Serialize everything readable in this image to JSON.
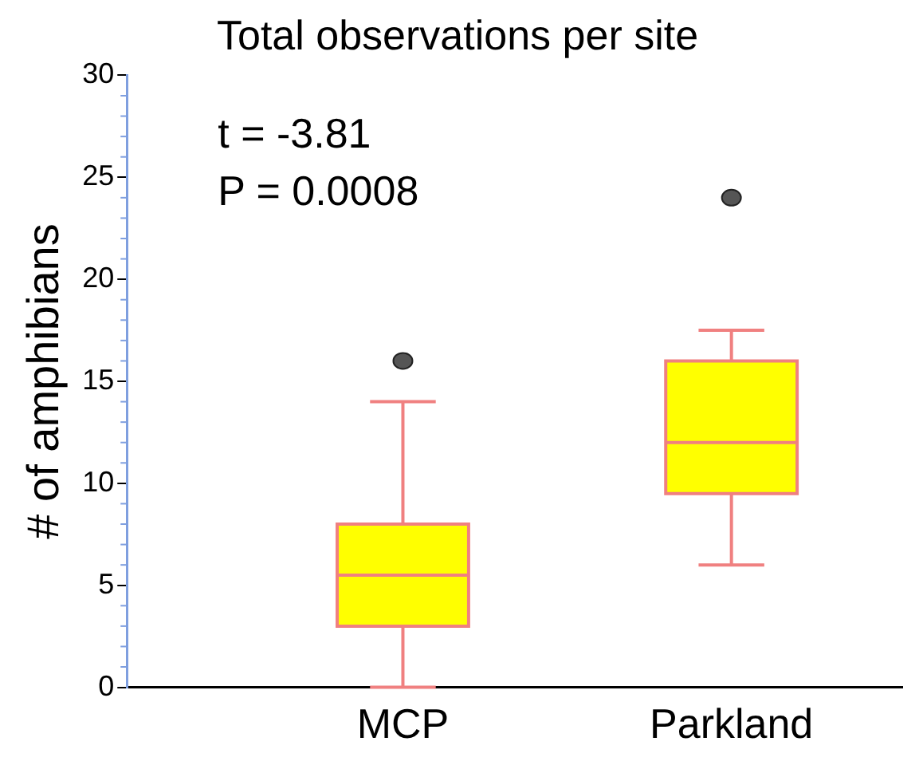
{
  "chart_data": {
    "type": "box",
    "title": "Total observations per site",
    "ylabel": "# of amphibians",
    "categories": [
      "MCP",
      "Parkland"
    ],
    "series": [
      {
        "color": "#ffff00",
        "boxes": [
          {
            "low": 0,
            "q1": 3,
            "median": 5.5,
            "q3": 8,
            "high": 14,
            "outliers": [
              16
            ]
          },
          {
            "low": 6,
            "q1": 9.5,
            "median": 12,
            "q3": 16,
            "high": 17.5,
            "outliers": [
              24
            ]
          }
        ]
      }
    ],
    "ylim": [
      0,
      30
    ],
    "yticks": [
      0,
      5,
      10,
      15,
      20,
      25,
      30
    ],
    "grid": false,
    "annotations": [
      "t = -3.81",
      "P = 0.0008"
    ]
  }
}
